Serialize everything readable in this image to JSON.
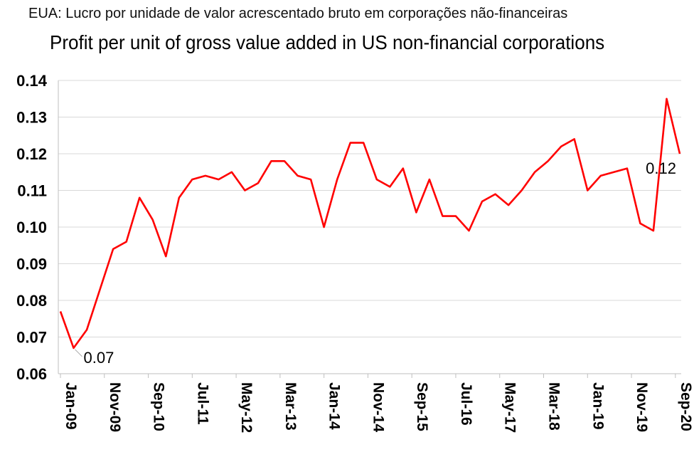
{
  "chart_data": {
    "type": "line",
    "subtitle": "EUA: Lucro por unidade de valor acrescentado bruto em corporações não-financeiras",
    "title": "Profit per unit of gross value added in US non-financial  corporations",
    "xlabel": "",
    "ylabel": "",
    "ylim": [
      0.06,
      0.14
    ],
    "yticks": [
      "0.06",
      "0.07",
      "0.08",
      "0.09",
      "0.10",
      "0.11",
      "0.12",
      "0.13",
      "0.14"
    ],
    "grid": true,
    "series_color": "#ff0000",
    "x_tick_labels": [
      "Jan-09",
      "Nov-09",
      "Sep-10",
      "Jul-11",
      "May-12",
      "Mar-13",
      "Jan-14",
      "Nov-14",
      "Sep-15",
      "Jul-16",
      "May-17",
      "Mar-18",
      "Jan-19",
      "Nov-19",
      "Sep-20"
    ],
    "series": [
      {
        "name": "Profit per unit of gross value added",
        "values": [
          0.077,
          0.067,
          0.072,
          0.083,
          0.094,
          0.096,
          0.108,
          0.102,
          0.092,
          0.108,
          0.113,
          0.114,
          0.113,
          0.115,
          0.11,
          0.112,
          0.118,
          0.118,
          0.114,
          0.113,
          0.1,
          0.113,
          0.123,
          0.123,
          0.113,
          0.111,
          0.116,
          0.104,
          0.113,
          0.103,
          0.103,
          0.099,
          0.107,
          0.109,
          0.106,
          0.11,
          0.115,
          0.118,
          0.122,
          0.124,
          0.11,
          0.114,
          0.115,
          0.116,
          0.101,
          0.099,
          0.135,
          0.12
        ]
      }
    ],
    "annotations": [
      {
        "label": "0.07",
        "index": 1
      },
      {
        "label": "0.12",
        "index": 47
      }
    ]
  }
}
